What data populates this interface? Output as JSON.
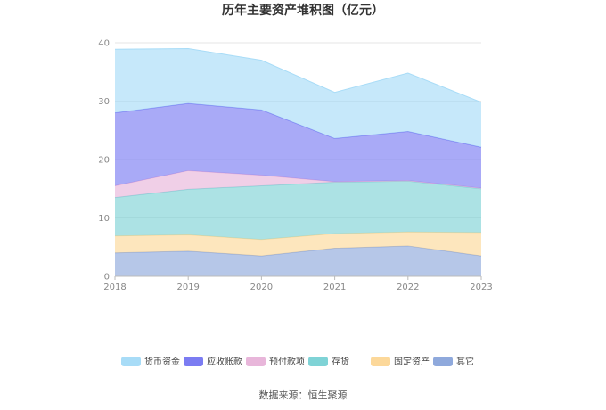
{
  "chart_data": {
    "type": "area",
    "stacked": true,
    "title": "历年主要资产堆积图（亿元）",
    "xlabel": "",
    "ylabel": "",
    "x": [
      "2018",
      "2019",
      "2020",
      "2021",
      "2022",
      "2023"
    ],
    "ylim": [
      0,
      40
    ],
    "yticks": [
      0,
      10,
      20,
      30,
      40
    ],
    "grid": true,
    "legend_position": "bottom",
    "series": [
      {
        "name": "其它",
        "color": "#8fa9dc",
        "values": [
          4.0,
          4.3,
          3.5,
          4.8,
          5.2,
          3.5
        ]
      },
      {
        "name": "固定资产",
        "color": "#fcd89a",
        "values": [
          2.9,
          2.8,
          2.8,
          2.5,
          2.4,
          4.0
        ]
      },
      {
        "name": "存货",
        "color": "#7fd3d6",
        "values": [
          6.6,
          7.8,
          9.2,
          8.8,
          8.7,
          7.5
        ]
      },
      {
        "name": "预付款项",
        "color": "#e8b6da",
        "values": [
          2.0,
          3.2,
          1.8,
          0.1,
          0.1,
          0.1
        ]
      },
      {
        "name": "应收账款",
        "color": "#7b7cf2",
        "values": [
          12.5,
          11.5,
          11.2,
          7.4,
          8.4,
          7.0
        ]
      },
      {
        "name": "货币资金",
        "color": "#a8dcf7",
        "values": [
          10.9,
          9.4,
          8.5,
          7.9,
          10.0,
          7.7
        ]
      }
    ],
    "legend_order": [
      "货币资金",
      "应收账款",
      "预付款项",
      "存货",
      "固定资产",
      "其它"
    ]
  },
  "footer": {
    "source": "数据来源：恒生聚源"
  }
}
